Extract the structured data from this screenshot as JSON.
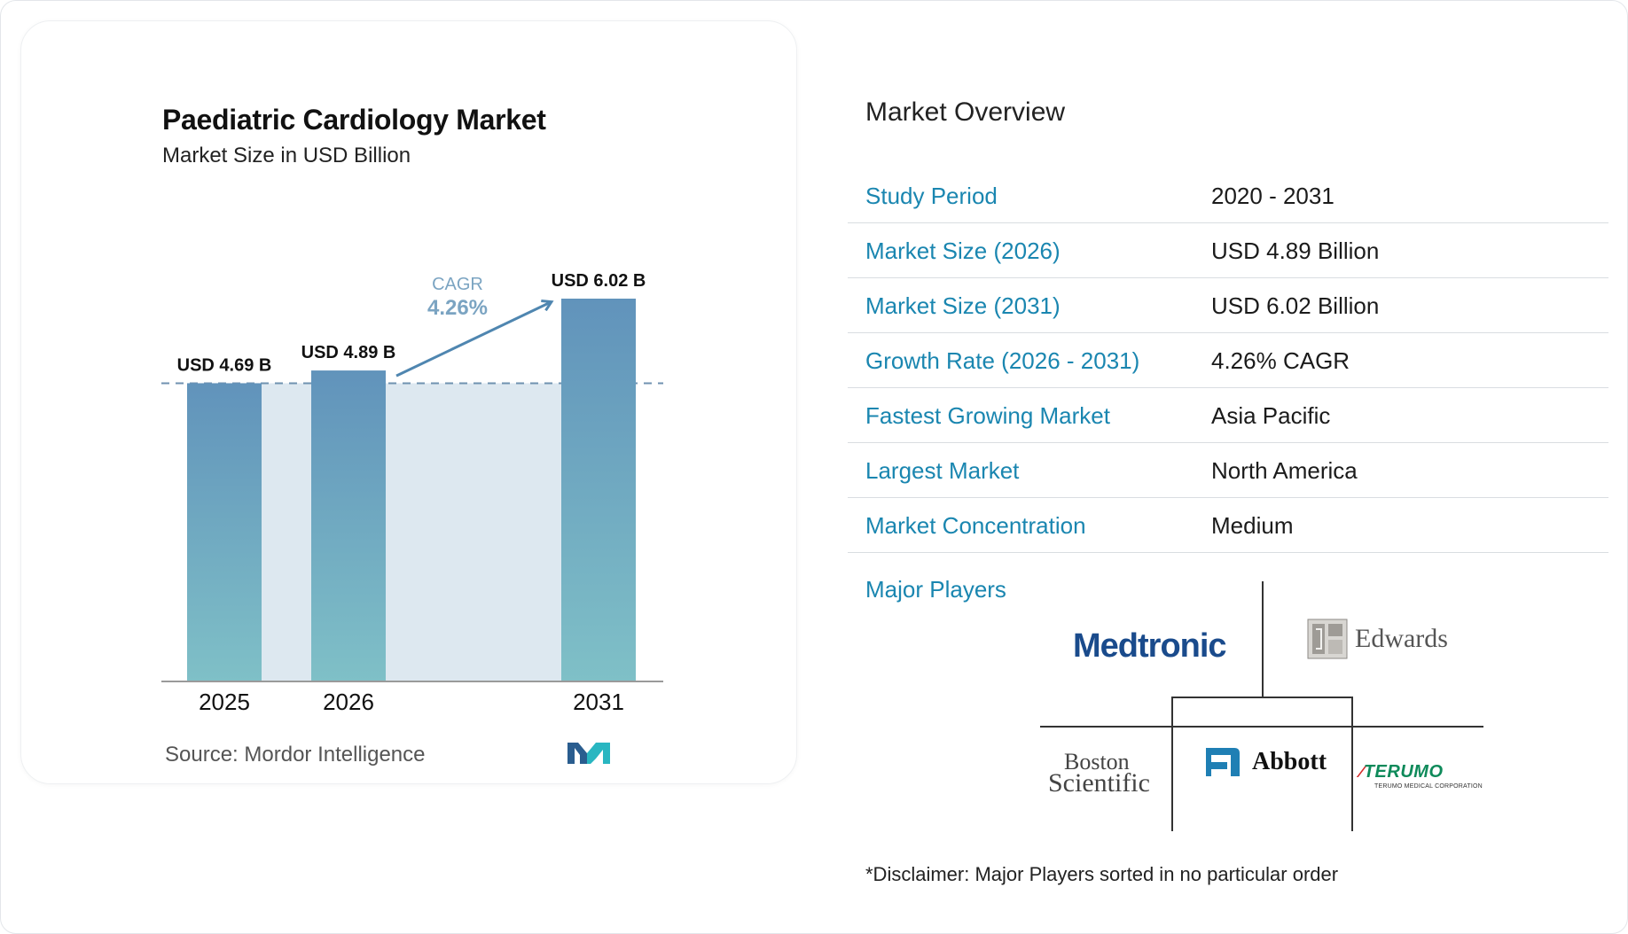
{
  "chart_data": {
    "type": "bar",
    "title": "Paediatric Cardiology Market",
    "subtitle": "Market Size in USD Billion",
    "categories": [
      "2025",
      "2026",
      "2031"
    ],
    "values": [
      4.69,
      4.89,
      6.02
    ],
    "data_labels": [
      "USD 4.69 B",
      "USD 4.89 B",
      "USD 6.02 B"
    ],
    "cagr_label": "CAGR",
    "cagr_value": "4.26%",
    "reference_value": 4.69,
    "ylim": [
      0,
      6.02
    ],
    "grid": false,
    "colors": {
      "bar_top": "#6193bb",
      "bar_bottom": "#7fc0c7",
      "band": "#dde8f0",
      "arrow": "#4f86b0",
      "cagr_text": "#7ba4c2"
    }
  },
  "source": {
    "label": "Source:",
    "value": "Mordor Intelligence"
  },
  "overview": {
    "title": "Market Overview",
    "rows": [
      {
        "label": "Study Period",
        "value": "2020 - 2031"
      },
      {
        "label": "Market Size (2026)",
        "value": "USD 4.89 Billion"
      },
      {
        "label": "Market Size (2031)",
        "value": "USD 6.02 Billion"
      },
      {
        "label": "Growth Rate (2026 - 2031)",
        "value": "4.26% CAGR"
      },
      {
        "label": "Fastest Growing Market",
        "value": "Asia Pacific"
      },
      {
        "label": "Largest Market",
        "value": "North America"
      },
      {
        "label": "Market Concentration",
        "value": "Medium"
      }
    ],
    "major_players_label": "Major Players",
    "players": {
      "medtronic": "Medtronic",
      "edwards": "Edwards",
      "boston_1": "Boston",
      "boston_2": "Scientific",
      "abbott": "Abbott",
      "terumo": "TERUMO",
      "terumo_sub": "TERUMO MEDICAL CORPORATION"
    },
    "disclaimer": "*Disclaimer: Major Players sorted in no particular order"
  }
}
